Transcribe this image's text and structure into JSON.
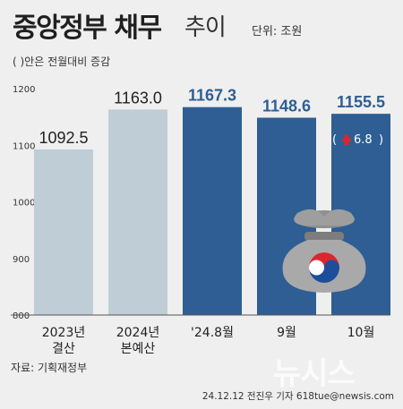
{
  "title": "중앙정부 채무",
  "subtitle": "추이",
  "unit": "단위: 조원",
  "note": "( )안은 전월대비 증감",
  "source": "자료: 기획재정부",
  "credit": "24.12.12 전진우 기자 618tue@newsis.com",
  "watermark": "뉴시스",
  "colors": {
    "past": "#bfcdd6",
    "recent": "#2e5e93",
    "change_arrow": "#d9262f"
  },
  "chart_data": {
    "type": "bar",
    "categories": [
      "2023년\n결산",
      "2024년\n본예산",
      "'24.8월",
      "9월",
      "10월"
    ],
    "values": [
      1092.5,
      1163.0,
      1167.3,
      1148.6,
      1155.5
    ],
    "value_labels": [
      "1092.5",
      "1163.0",
      "1167.3",
      "1148.6",
      "1155.5"
    ],
    "change": {
      "category": "10월",
      "label": "6.8",
      "direction": "up"
    },
    "ylim": [
      800,
      1200
    ],
    "yticks": [
      "800",
      "900",
      "1000",
      "1100",
      "1200"
    ],
    "grid": false,
    "legend": "none"
  }
}
